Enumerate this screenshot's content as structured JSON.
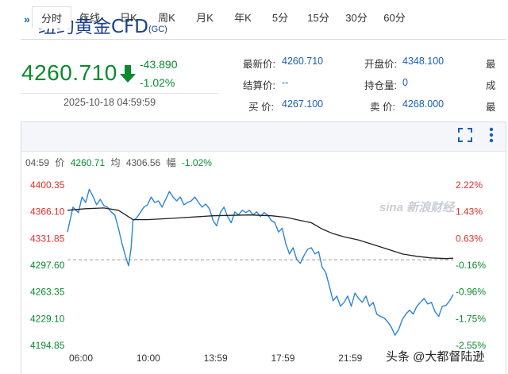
{
  "header": {
    "arrows": "»",
    "title": "纽约黄金CFD",
    "code": "(GC)"
  },
  "quote": {
    "price": "4260.710",
    "change_abs": "-43.890",
    "change_pct": "-1.02%",
    "datetime": "2025-10-18 04:59:59"
  },
  "stats": [
    {
      "label": "最新价:",
      "value": "4260.710"
    },
    {
      "label": "开盘价:",
      "value": "4348.100"
    },
    {
      "label": "最",
      "value": ""
    },
    {
      "label": "结算价:",
      "value": "--"
    },
    {
      "label": "持仓量:",
      "value": "0"
    },
    {
      "label": "成",
      "value": ""
    },
    {
      "label": "买  价:",
      "value": "4267.100"
    },
    {
      "label": "卖  价:",
      "value": "4268.000"
    },
    {
      "label": "最",
      "value": ""
    }
  ],
  "tabs": [
    "分时",
    "年线",
    "日K",
    "周K",
    "月K",
    "年K",
    "5分",
    "15分",
    "30分",
    "60分"
  ],
  "active_tab": "分时",
  "info_bar": {
    "time": "04:59",
    "price_label": "价",
    "price": "4260.71",
    "avg_label": "均",
    "avg": "4306.56",
    "amp_label": "幅",
    "amp": "-1.02%"
  },
  "watermark": "sina 新浪财经",
  "credit": "头条 @大都督陆逊",
  "colors": {
    "price_line": "#2c84d8",
    "avg_line": "#222222",
    "up": "#e0302a",
    "down": "#0a8a2d",
    "baseline": "#999999"
  },
  "chart_data": {
    "type": "line",
    "title": "",
    "x_ticks": [
      "06:00",
      "10:00",
      "13:59",
      "17:59",
      "21:59"
    ],
    "y_ticks_price": [
      4400.35,
      4366.1,
      4331.85,
      4297.6,
      4263.35,
      4229.1,
      4194.85
    ],
    "y_ticks_pct": [
      "2.22%",
      "1.43%",
      "0.63%",
      "-0.16%",
      "-0.96%",
      "-1.75%",
      "-2.55%"
    ],
    "ylim": [
      4194.85,
      4400.35
    ],
    "prev_close": 4304.6,
    "series": [
      {
        "key": "price",
        "points": [
          [
            0,
            4340
          ],
          [
            1.5,
            4372
          ],
          [
            3,
            4365
          ],
          [
            4,
            4385
          ],
          [
            5,
            4378
          ],
          [
            6,
            4395
          ],
          [
            7,
            4386
          ],
          [
            8,
            4375
          ],
          [
            9,
            4382
          ],
          [
            10,
            4374
          ],
          [
            11,
            4372
          ],
          [
            12,
            4366
          ],
          [
            13,
            4362
          ],
          [
            14,
            4345
          ],
          [
            15,
            4325
          ],
          [
            16,
            4308
          ],
          [
            16.8,
            4297
          ],
          [
            17.5,
            4320
          ],
          [
            18,
            4355
          ],
          [
            19,
            4358
          ],
          [
            20,
            4365
          ],
          [
            21,
            4372
          ],
          [
            22,
            4375
          ],
          [
            23,
            4385
          ],
          [
            24,
            4378
          ],
          [
            25,
            4380
          ],
          [
            26,
            4372
          ],
          [
            27,
            4382
          ],
          [
            28,
            4392
          ],
          [
            29,
            4385
          ],
          [
            30,
            4380
          ],
          [
            31,
            4385
          ],
          [
            32,
            4375
          ],
          [
            33,
            4378
          ],
          [
            34,
            4380
          ],
          [
            35,
            4385
          ],
          [
            36,
            4378
          ],
          [
            37,
            4372
          ],
          [
            38,
            4376
          ],
          [
            39,
            4370
          ],
          [
            40,
            4355
          ],
          [
            41,
            4348
          ],
          [
            42,
            4365
          ],
          [
            43,
            4372
          ],
          [
            44,
            4360
          ],
          [
            45,
            4352
          ],
          [
            46,
            4366
          ],
          [
            47,
            4362
          ],
          [
            48,
            4368
          ],
          [
            49,
            4365
          ],
          [
            50,
            4368
          ],
          [
            51,
            4362
          ],
          [
            52,
            4366
          ],
          [
            53,
            4360
          ],
          [
            54,
            4365
          ],
          [
            55,
            4362
          ],
          [
            56,
            4355
          ],
          [
            57,
            4352
          ],
          [
            58,
            4340
          ],
          [
            59,
            4345
          ],
          [
            60,
            4325
          ],
          [
            61,
            4312
          ],
          [
            62,
            4320
          ],
          [
            63,
            4305
          ],
          [
            64,
            4300
          ],
          [
            65,
            4310
          ],
          [
            66,
            4318
          ],
          [
            67,
            4320
          ],
          [
            68,
            4312
          ],
          [
            69,
            4315
          ],
          [
            70,
            4295
          ],
          [
            71,
            4288
          ],
          [
            72,
            4270
          ],
          [
            73,
            4252
          ],
          [
            74,
            4258
          ],
          [
            75,
            4245
          ],
          [
            76,
            4250
          ],
          [
            77,
            4258
          ],
          [
            78,
            4245
          ],
          [
            79,
            4262
          ],
          [
            80,
            4255
          ],
          [
            81,
            4250
          ],
          [
            82,
            4258
          ],
          [
            83,
            4245
          ],
          [
            84,
            4250
          ],
          [
            85,
            4235
          ],
          [
            86,
            4232
          ],
          [
            87,
            4230
          ],
          [
            88,
            4225
          ],
          [
            89,
            4218
          ],
          [
            90,
            4208
          ],
          [
            91,
            4215
          ],
          [
            92,
            4228
          ],
          [
            93,
            4235
          ],
          [
            94,
            4240
          ],
          [
            95,
            4235
          ],
          [
            96,
            4245
          ],
          [
            97,
            4250
          ],
          [
            98,
            4255
          ],
          [
            99,
            4248
          ],
          [
            100,
            4250
          ],
          [
            101,
            4238
          ],
          [
            102,
            4232
          ],
          [
            103,
            4245
          ],
          [
            104,
            4246
          ],
          [
            105,
            4252
          ],
          [
            106,
            4260
          ]
        ]
      },
      {
        "key": "average",
        "points": [
          [
            0,
            4368
          ],
          [
            5,
            4370
          ],
          [
            10,
            4371
          ],
          [
            14,
            4368
          ],
          [
            16,
            4362
          ],
          [
            18,
            4356
          ],
          [
            22,
            4356
          ],
          [
            30,
            4358
          ],
          [
            40,
            4361
          ],
          [
            50,
            4362
          ],
          [
            56,
            4361
          ],
          [
            60,
            4359
          ],
          [
            64,
            4355
          ],
          [
            67,
            4352
          ],
          [
            70,
            4344
          ],
          [
            73,
            4338
          ],
          [
            76,
            4334
          ],
          [
            80,
            4330
          ],
          [
            84,
            4324
          ],
          [
            88,
            4318
          ],
          [
            92,
            4312
          ],
          [
            96,
            4309
          ],
          [
            100,
            4307
          ],
          [
            104,
            4306
          ],
          [
            106,
            4306.56
          ]
        ]
      }
    ]
  }
}
